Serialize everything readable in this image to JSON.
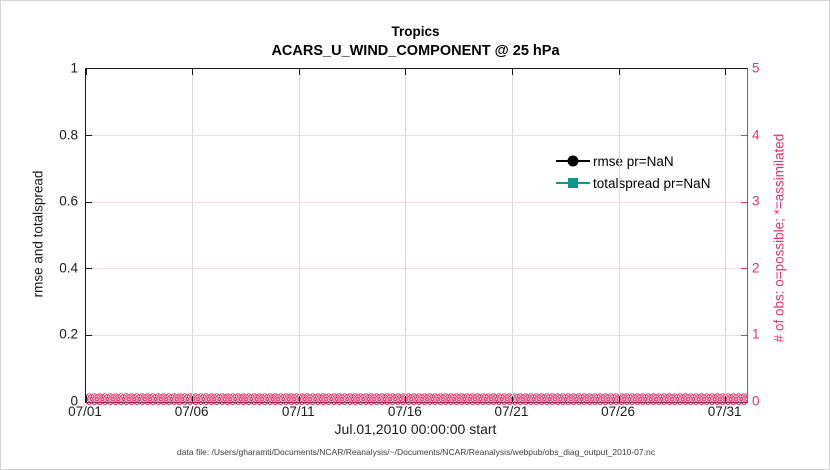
{
  "figure": {
    "background": "#ffffff",
    "footer_text": "data file: /Users/gharamti/Documents/NCAR/Reanalysis/~/Documents/NCAR/Reanalysis/webpub/obs_diag_output_2010-07.nc"
  },
  "chart_data": {
    "type": "line",
    "title": "Tropics",
    "subtitle": "ACARS_U_WIND_COMPONENT @ 25 hPa",
    "xlabel": "Jul.01,2010 00:00:00 start",
    "grid": {
      "vertical_color": "#d8d8d8",
      "horizontal_color": "#f6dbe5",
      "grid_on": true
    },
    "x_axis": {
      "tick_labels": [
        "07/01",
        "07/06",
        "07/11",
        "07/16",
        "07/21",
        "07/26",
        "07/31"
      ],
      "tick_days": [
        1,
        6,
        11,
        16,
        21,
        26,
        31
      ],
      "range_days": [
        1,
        32
      ],
      "color": "#1a1a1a"
    },
    "left_axis": {
      "label": "rmse and totalspread",
      "min": 0,
      "max": 1,
      "ticks": [
        0,
        0.2,
        0.4,
        0.6,
        0.8,
        1
      ],
      "tick_labels": [
        "0",
        "0.2",
        "0.4",
        "0.6",
        "0.8",
        "1"
      ],
      "color": "#1a1a1a"
    },
    "right_axis": {
      "label": "# of obs: o=possible; *=assimilated",
      "min": 0,
      "max": 5,
      "ticks": [
        0,
        1,
        2,
        3,
        4,
        5
      ],
      "tick_labels": [
        "0",
        "1",
        "2",
        "3",
        "4",
        "5"
      ],
      "color": "#e2336d"
    },
    "legend": [
      {
        "label": "rmse pr=NaN",
        "color": "#000000",
        "marker": "circle"
      },
      {
        "label": "totalspread pr=NaN",
        "color": "#12948c",
        "marker": "square"
      }
    ],
    "series": [
      {
        "name": "rmse",
        "marker": "circle",
        "color": "#000000",
        "values": null,
        "note": "pr=NaN, no curve drawn"
      },
      {
        "name": "totalspread",
        "marker": "square",
        "color": "#12948c",
        "values": null,
        "note": "pr=NaN, no curve drawn"
      },
      {
        "name": "possible_obs",
        "marker": "o",
        "color": "#e2336d",
        "constant_value": 0,
        "points": 124,
        "note": "4 per day for 31 days, all zero"
      },
      {
        "name": "assimilated_obs",
        "marker": "x",
        "color": "#e2336d",
        "constant_value": 0,
        "points": 124,
        "note": "4 per day for 31 days, all zero"
      }
    ]
  }
}
